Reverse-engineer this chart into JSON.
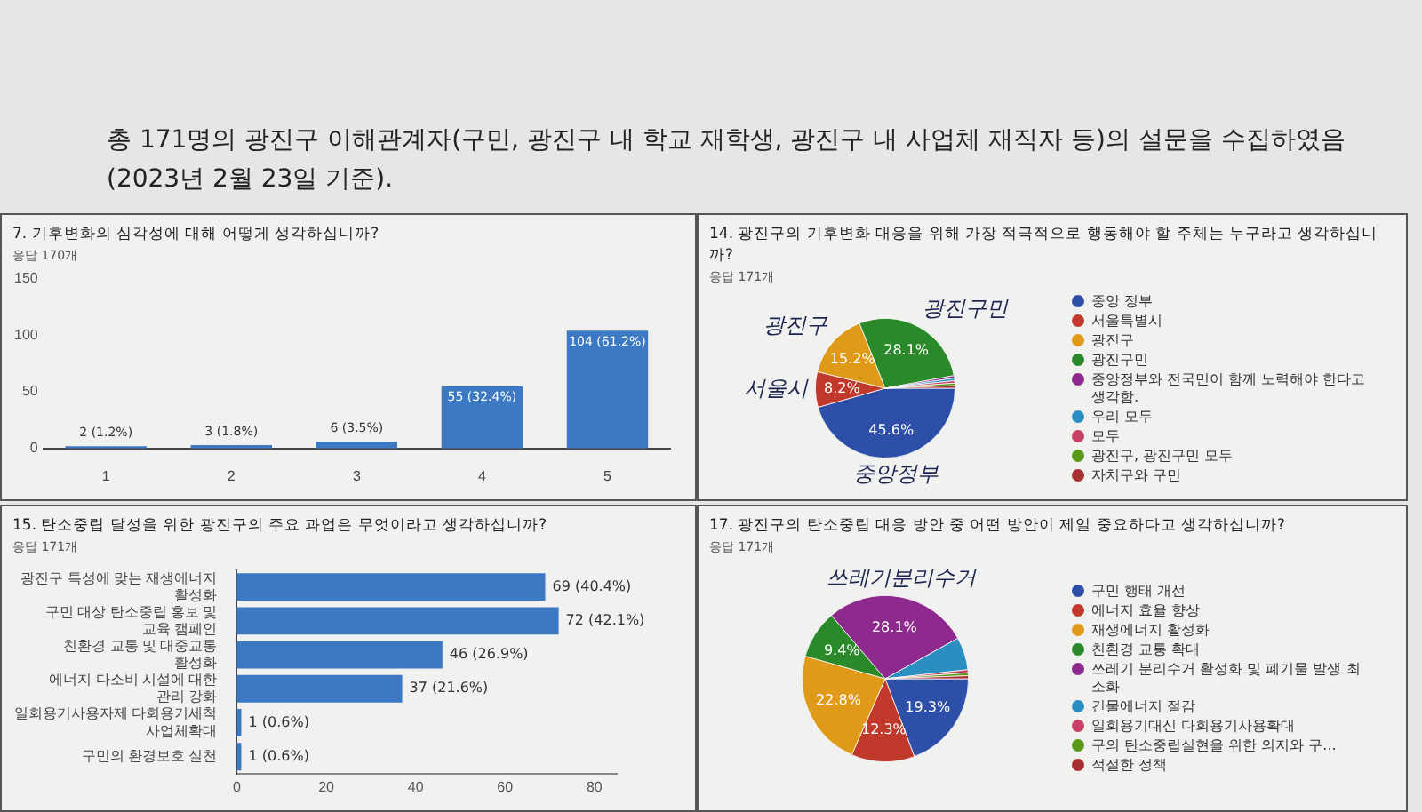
{
  "chart_data": [
    {
      "type": "bar",
      "title": "7. 기후변화의 심각성에 대해 어떻게 생각하십니까?",
      "subtitle": "응답 170개",
      "annotations": [
        "총 171명의 광진구 이해관계자(구민, 광진구 내 학교 재학생, 광진구 내 사업체 재직자 등)의 설문을 수집하였음 (2023년 2월 23일 기준)."
      ],
      "categories": [
        "1",
        "2",
        "3",
        "4",
        "5"
      ],
      "values": [
        2,
        3,
        6,
        55,
        104
      ],
      "value_labels": [
        "2 (1.2%)",
        "3 (1.8%)",
        "6 (3.5%)",
        "55 (32.4%)",
        "104 (61.2%)"
      ],
      "color": "#3d78c2",
      "ylim": [
        0,
        150
      ],
      "yticks": [
        0,
        50,
        100,
        150
      ],
      "grid": false
    },
    {
      "type": "pie",
      "title": "14. 광진구의 기후변화 대응을 위해 가장 적극적으로 행동해야 할 주체는 누구라고 생각하십니까?",
      "subtitle": "응답 171개",
      "categories": [
        "중앙 정부",
        "서울특별시",
        "광진구",
        "광진구민",
        "중앙정부와 전국민이 함께 노력해야 한다고 생각함.",
        "우리 모두",
        "모두",
        "광진구, 광진구민 모두",
        "자치구와 구민"
      ],
      "values": [
        45.6,
        8.2,
        15.2,
        28.1,
        0.58,
        0.58,
        0.58,
        0.58,
        0.58
      ],
      "value_labels": [
        "45.6%",
        "8.2%",
        "15.2%",
        "28.1%",
        null,
        null,
        null,
        null,
        null
      ],
      "colors": [
        "#2e4fa8",
        "#c0392b",
        "#e09a1a",
        "#2a8a2a",
        "#8e2a8e",
        "#2a8fc0",
        "#c84066",
        "#5a9a1a",
        "#a83030"
      ],
      "legend": "right",
      "annotations": [
        {
          "text": "중앙정부",
          "x": "중앙 정부"
        },
        {
          "text": "서울시",
          "x": "서울특별시"
        },
        {
          "text": "광진구",
          "x": "광진구"
        },
        {
          "text": "광진구민",
          "x": "광진구민"
        }
      ]
    },
    {
      "type": "bar",
      "orientation": "horizontal",
      "title": "15. 탄소중립 달성을 위한 광진구의 주요 과업은 무엇이라고 생각하십니까?",
      "subtitle": "응답 171개",
      "categories": [
        "광진구 특성에 맞는 재생에너지 활성화",
        "구민 대상 탄소중립 홍보 및 교육 캠페인",
        "친환경 교통 및 대중교통 활성화",
        "에너지 다소비 시설에 대한 관리 강화",
        "일회용기사용자제 다회용기세척 사업체확대",
        "구민의 환경보호 실천"
      ],
      "values": [
        69,
        72,
        46,
        37,
        1,
        1
      ],
      "value_labels": [
        "69 (40.4%)",
        "72 (42.1%)",
        "46 (26.9%)",
        "37 (21.6%)",
        "1 (0.6%)",
        "1 (0.6%)"
      ],
      "color": "#3d78c2",
      "xlim": [
        0,
        85
      ],
      "xticks": [
        0,
        20,
        40,
        60,
        80
      ],
      "grid": false
    },
    {
      "type": "pie",
      "title": "17. 광진구의 탄소중립 대응 방안 중 어떤 방안이 제일 중요하다고 생각하십니까?",
      "subtitle": "응답 171개",
      "categories": [
        "구민 행태 개선",
        "에너지 효율 향상",
        "재생에너지 활성화",
        "친환경 교통 확대",
        "쓰레기 분리수거 활성화 및 폐기물 발생 최소화",
        "건물에너지 절감",
        "일회용기대신 다회용기사용확대",
        "구의 탄소중립실현을 위한 의지와 구...",
        "적절한 정책"
      ],
      "values": [
        19.3,
        12.3,
        22.8,
        9.4,
        28.1,
        6.36,
        0.58,
        0.58,
        0.58
      ],
      "value_labels": [
        "19.3%",
        "12.3%",
        "22.8%",
        "9.4%",
        "28.1%",
        null,
        null,
        null,
        null
      ],
      "colors": [
        "#2e4fa8",
        "#c0392b",
        "#e09a1a",
        "#2a8a2a",
        "#8e2a8e",
        "#2a8fc0",
        "#c84066",
        "#5a9a1a",
        "#a83030"
      ],
      "legend": "right",
      "annotations": [
        {
          "text": "쓰레기분리수거",
          "x": "쓰레기 분리수거 활성화 및 폐기물 발생 최소화"
        }
      ]
    }
  ]
}
